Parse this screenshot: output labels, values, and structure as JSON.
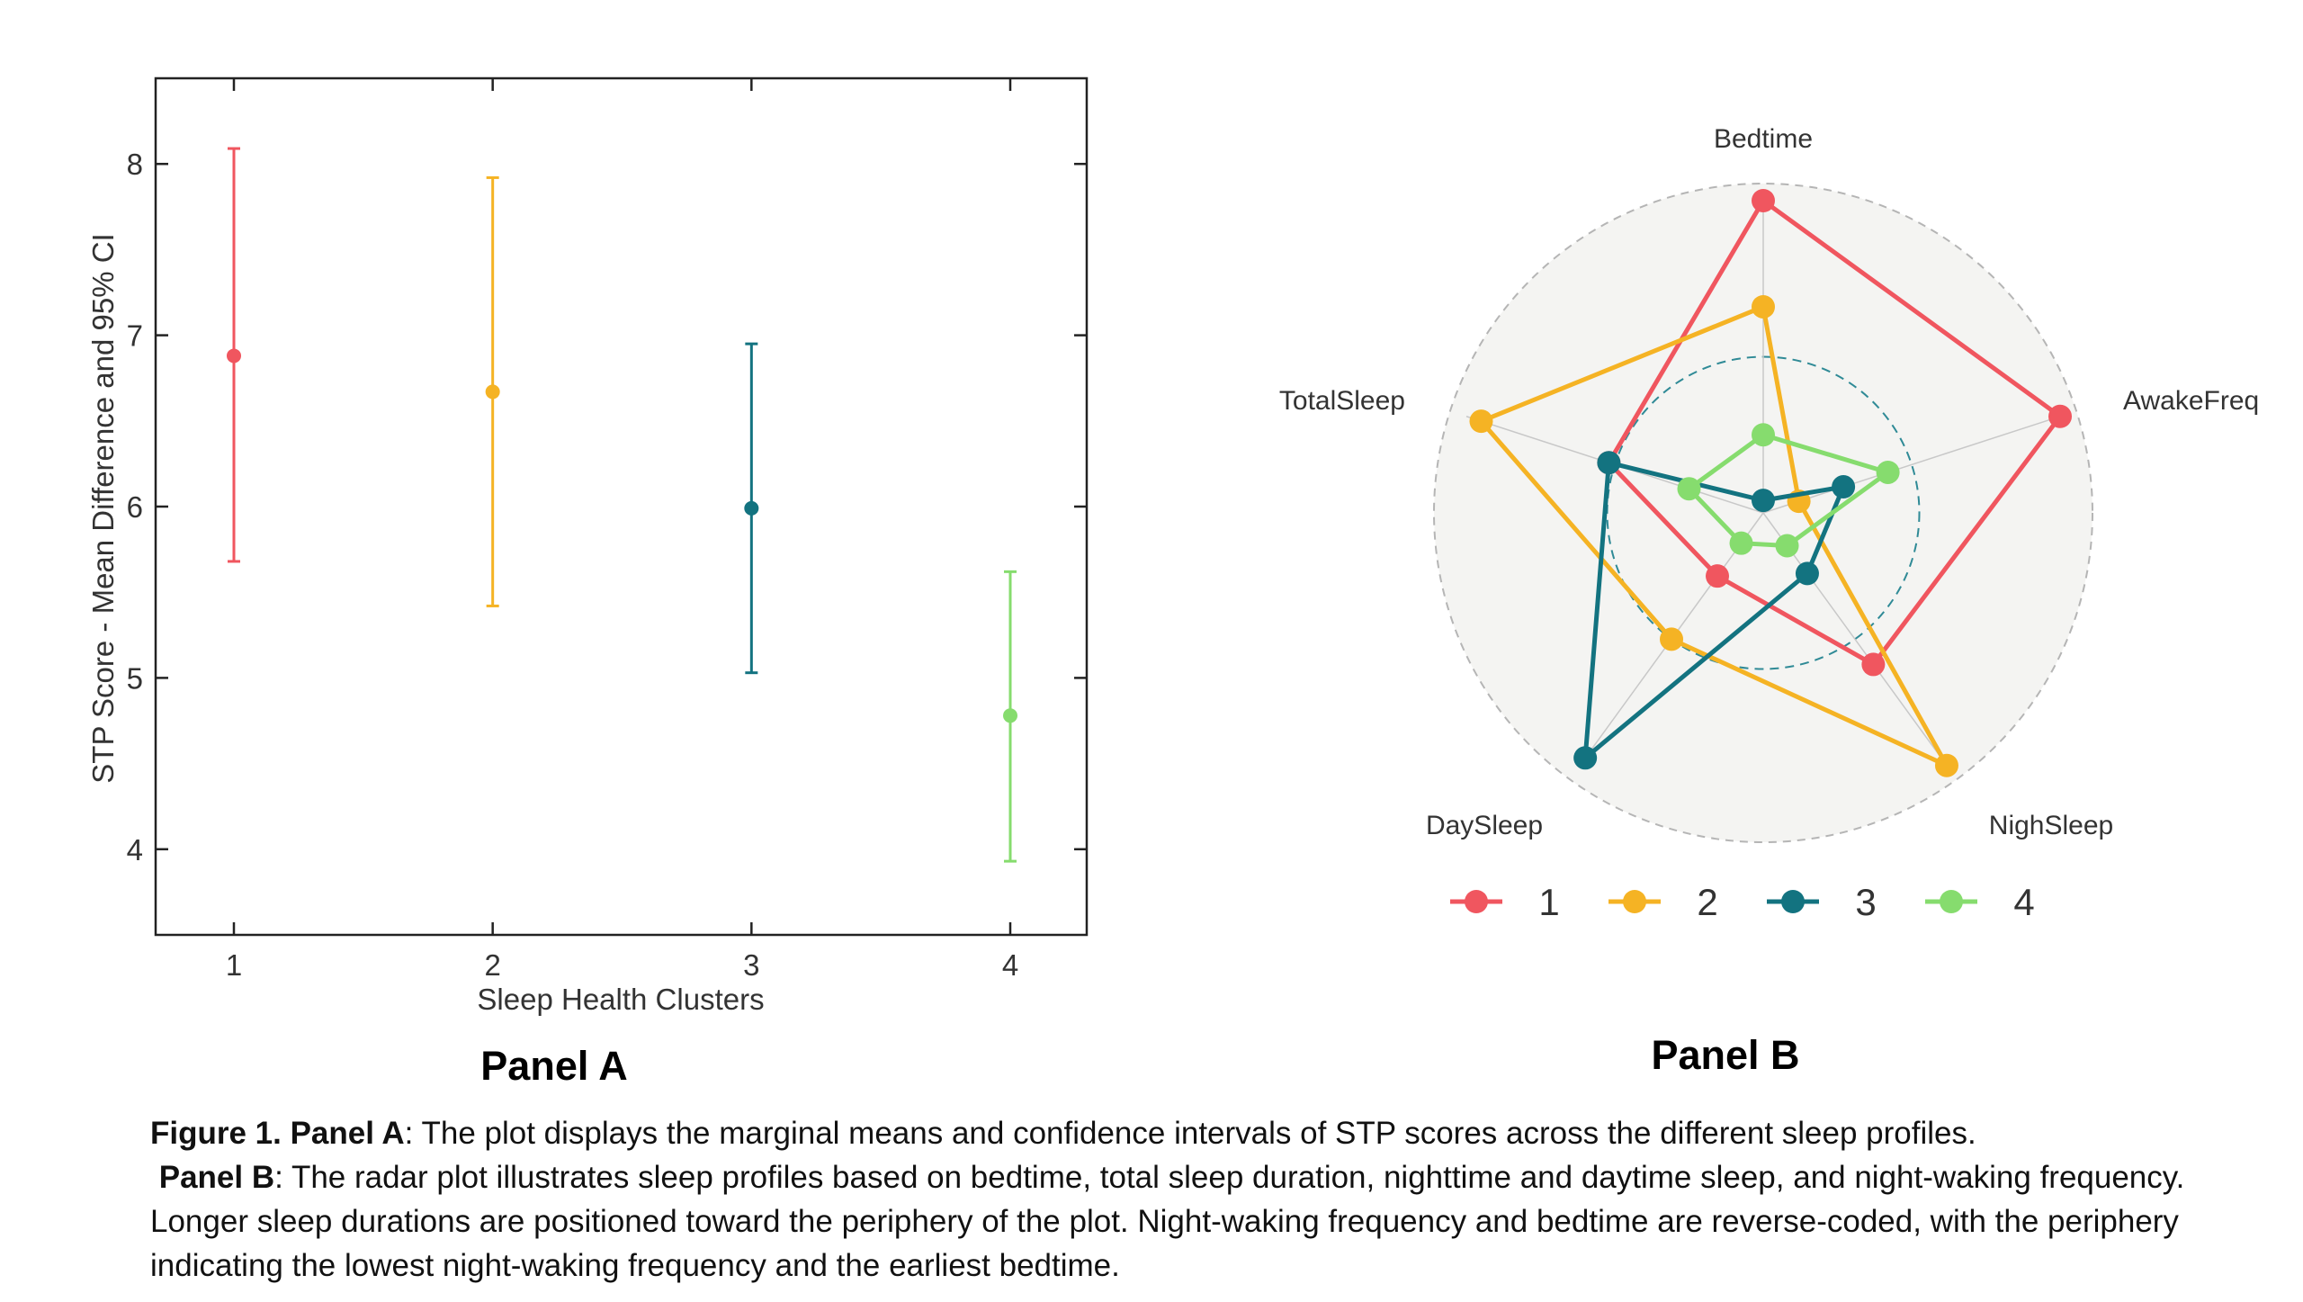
{
  "chart_data": [
    {
      "type": "scatter",
      "subtype": "point-with-error-bars",
      "panel_label": "Panel A",
      "xlabel": "Sleep Health Clusters",
      "ylabel": "STP Score - Mean Difference and 95% CI",
      "categories": [
        "1",
        "2",
        "3",
        "4"
      ],
      "ylim": [
        3.5,
        8.5
      ],
      "yticks": [
        4,
        5,
        6,
        7,
        8
      ],
      "grid": false,
      "points": [
        {
          "cluster": "1",
          "mean": 6.88,
          "lower": 5.68,
          "upper": 8.09,
          "color": "#f0565f"
        },
        {
          "cluster": "2",
          "mean": 6.67,
          "lower": 5.42,
          "upper": 7.92,
          "color": "#f5b324"
        },
        {
          "cluster": "3",
          "mean": 5.99,
          "lower": 5.03,
          "upper": 6.95,
          "color": "#137380"
        },
        {
          "cluster": "4",
          "mean": 4.78,
          "lower": 3.93,
          "upper": 5.62,
          "color": "#86dc6e"
        }
      ]
    },
    {
      "type": "radar",
      "panel_label": "Panel B",
      "axes": [
        "Bedtime",
        "AwakeFreq",
        "NighSleep",
        "DaySleep",
        "TotalSleep"
      ],
      "range": [
        0,
        1
      ],
      "reference_ring": 0.5,
      "legend_position": "bottom",
      "series": [
        {
          "name": "1",
          "color": "#f0565f",
          "values": [
            1.0,
            1.0,
            0.6,
            0.25,
            0.52
          ]
        },
        {
          "name": "2",
          "color": "#f5b324",
          "values": [
            0.66,
            0.12,
            1.0,
            0.5,
            0.95
          ]
        },
        {
          "name": "3",
          "color": "#137380",
          "values": [
            0.04,
            0.27,
            0.24,
            0.97,
            0.52
          ]
        },
        {
          "name": "4",
          "color": "#86dc6e",
          "values": [
            0.25,
            0.42,
            0.13,
            0.12,
            0.25
          ]
        }
      ]
    }
  ],
  "caption": {
    "line1_bold": "Figure 1. Panel A",
    "line1_text": ": The plot displays the marginal means and confidence intervals of STP scores across the different sleep profiles.",
    "line2_bold": "Panel B",
    "line2_text": ": The radar plot illustrates sleep profiles based on bedtime, total sleep duration, nighttime and daytime sleep, and night-waking frequency. Longer sleep durations are positioned toward the periphery of the plot. Night-waking frequency and bedtime are reverse-coded, with the periphery indicating the lowest night-waking frequency and the earliest bedtime."
  }
}
